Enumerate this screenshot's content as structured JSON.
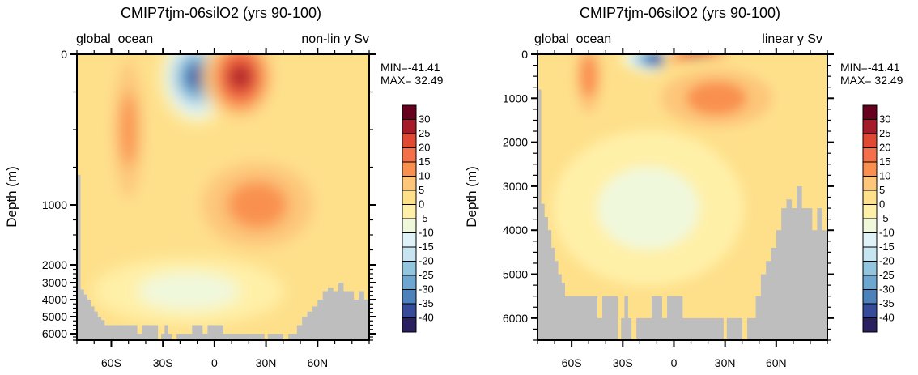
{
  "chart_data": [
    {
      "type": "heatmap",
      "title": "CMIP7tjm-06silO2 (yrs 90-100)",
      "left_label": "global_ocean",
      "right_label": "non-lin y Sv",
      "xlabel": "",
      "ylabel": "Depth (m)",
      "y_scale": "non-linear",
      "xlim": [
        -80,
        90
      ],
      "ylim": [
        6500,
        0
      ],
      "x_ticks": [
        {
          "v": -60,
          "label": "60S"
        },
        {
          "v": -30,
          "label": "30S"
        },
        {
          "v": 0,
          "label": "0"
        },
        {
          "v": 30,
          "label": "30N"
        },
        {
          "v": 60,
          "label": "60N"
        }
      ],
      "y_ticks": [
        {
          "v": 0,
          "label": "0"
        },
        {
          "v": 1000,
          "label": "1000"
        },
        {
          "v": 2000,
          "label": "2000"
        },
        {
          "v": 3000,
          "label": "3000"
        },
        {
          "v": 4000,
          "label": "4000"
        },
        {
          "v": 5000,
          "label": "5000"
        },
        {
          "v": 6000,
          "label": "6000"
        }
      ],
      "min_text": "MIN=-41.41",
      "max_text": "MAX= 32.49",
      "min": -41.41,
      "max": 32.49,
      "features": [
        {
          "desc": "negative cell (Southern Hemisphere upper cell)",
          "lat": -10,
          "depth": 150,
          "value": -40
        },
        {
          "desc": "positive cell (Northern Hemisphere upper cell)",
          "lat": 15,
          "depth": 150,
          "value": 32
        },
        {
          "desc": "Southern Ocean positive overturning",
          "lat": -50,
          "depth": 500,
          "value": 15
        },
        {
          "desc": "NH deep positive overturning",
          "lat": 25,
          "depth": 1000,
          "value": 13
        },
        {
          "desc": "abyssal negative cell",
          "lat": -15,
          "depth": 3500,
          "value": -12
        }
      ]
    },
    {
      "type": "heatmap",
      "title": "CMIP7tjm-06silO2 (yrs 90-100)",
      "left_label": "global_ocean",
      "right_label": "linear y Sv",
      "xlabel": "",
      "ylabel": "Depth (m)",
      "y_scale": "linear",
      "xlim": [
        -80,
        90
      ],
      "ylim": [
        6500,
        0
      ],
      "x_ticks": [
        {
          "v": -60,
          "label": "60S"
        },
        {
          "v": -30,
          "label": "30S"
        },
        {
          "v": 0,
          "label": "0"
        },
        {
          "v": 30,
          "label": "30N"
        },
        {
          "v": 60,
          "label": "60N"
        }
      ],
      "y_ticks": [
        {
          "v": 0,
          "label": "0"
        },
        {
          "v": 1000,
          "label": "1000"
        },
        {
          "v": 2000,
          "label": "2000"
        },
        {
          "v": 3000,
          "label": "3000"
        },
        {
          "v": 4000,
          "label": "4000"
        },
        {
          "v": 5000,
          "label": "5000"
        },
        {
          "v": 6000,
          "label": "6000"
        }
      ],
      "min_text": "MIN=-41.41",
      "max_text": "MAX= 32.49",
      "min": -41.41,
      "max": 32.49,
      "features": [
        {
          "desc": "negative cell (Southern Hemisphere upper cell)",
          "lat": -10,
          "depth": 100,
          "value": -40
        },
        {
          "desc": "positive cell (Northern Hemisphere upper cell)",
          "lat": 15,
          "depth": 100,
          "value": 32
        },
        {
          "desc": "Southern Ocean positive overturning",
          "lat": -50,
          "depth": 500,
          "value": 15
        },
        {
          "desc": "NH deep positive overturning",
          "lat": 25,
          "depth": 1000,
          "value": 13
        },
        {
          "desc": "abyssal negative cell",
          "lat": -15,
          "depth": 3500,
          "value": -12
        }
      ]
    }
  ],
  "colorbar": {
    "labels": [
      "30",
      "25",
      "20",
      "15",
      "10",
      "5",
      "0",
      "-5",
      "-10",
      "-15",
      "-20",
      "-25",
      "-30",
      "-35",
      "-40"
    ],
    "colors": [
      "#67001f",
      "#a51b2a",
      "#e04a33",
      "#f4704a",
      "#f99050",
      "#fdc679",
      "#fee08b",
      "#fff0a8",
      "#f0f8dc",
      "#dff2f7",
      "#c6e5f0",
      "#92c5de",
      "#6ba7d0",
      "#4b82bc",
      "#364b9a",
      "#2a1f5f"
    ],
    "land_color": "#bebebe"
  },
  "bathymetry": {
    "lat_edges": [
      -80,
      -78,
      -76,
      -74,
      -72,
      -70,
      -68,
      -66,
      -64,
      -62,
      -60,
      -57,
      -54,
      -51,
      -48,
      -45,
      -42,
      -39,
      -36,
      -33,
      -31,
      -29,
      -27,
      -25,
      -22,
      -19,
      -16,
      -13,
      -10,
      -7,
      -4,
      -1,
      2,
      5,
      8,
      11,
      14,
      17,
      20,
      23,
      26,
      29,
      31,
      34,
      37,
      40,
      43,
      45,
      48,
      51,
      54,
      57,
      60,
      63,
      66,
      69,
      72,
      75,
      78,
      81,
      84,
      87,
      90
    ],
    "depths": [
      800,
      3400,
      3700,
      4000,
      4400,
      4700,
      5000,
      5200,
      5500,
      5500,
      5500,
      5500,
      5500,
      5500,
      5500,
      6000,
      5500,
      5500,
      5500,
      6500,
      6000,
      5500,
      6000,
      6500,
      6000,
      6000,
      6000,
      5500,
      5500,
      6000,
      5500,
      5500,
      5500,
      6000,
      6000,
      6000,
      6000,
      6000,
      6000,
      6000,
      6000,
      6500,
      6000,
      6000,
      6000,
      6500,
      6000,
      6000,
      5500,
      5000,
      4700,
      4400,
      4000,
      3500,
      3300,
      3500,
      3000,
      3500,
      3500,
      4000,
      3500,
      4000
    ]
  }
}
